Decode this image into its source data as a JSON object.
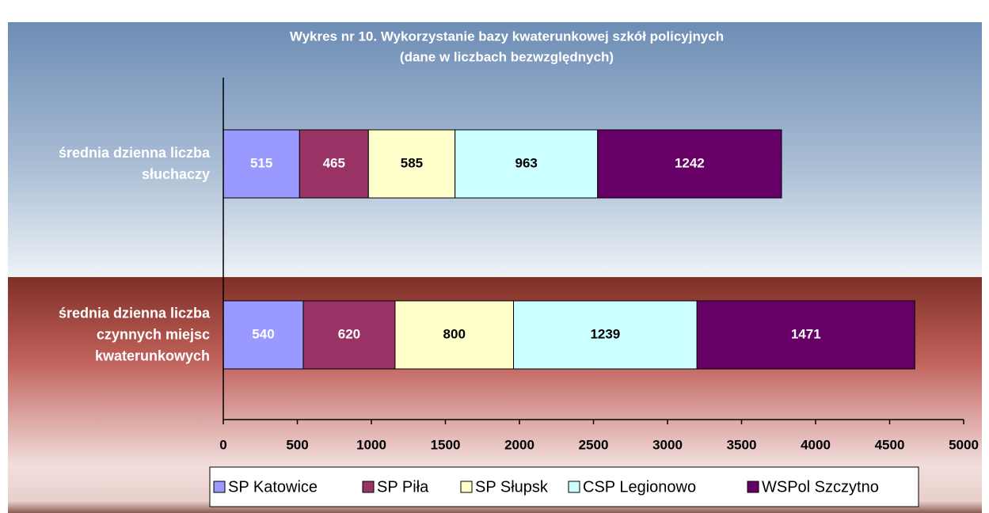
{
  "chart_data": {
    "type": "stacked_bar_horizontal",
    "title": "Wykres nr 10. Wykorzystanie bazy kwaterunkowej szkół policyjnych",
    "subtitle": "(dane w liczbach bezwzględnych)",
    "categories": [
      "średnia dzienna liczba\nsłuchaczy",
      "średnia dzienna liczba\nczynnych miejsc\nkwaterunkowych"
    ],
    "series": [
      {
        "name": "SP Katowice",
        "color": "#9999ff",
        "label_color": "#ffffff",
        "values": [
          515,
          540
        ]
      },
      {
        "name": "SP Piła",
        "color": "#993366",
        "label_color": "#ffffff",
        "values": [
          465,
          620
        ]
      },
      {
        "name": "SP Słupsk",
        "color": "#ffffcc",
        "label_color": "#000000",
        "values": [
          585,
          800
        ]
      },
      {
        "name": "CSP Legionowo",
        "color": "#ccffff",
        "label_color": "#000000",
        "values": [
          963,
          1239
        ]
      },
      {
        "name": "WSPol Szczytno",
        "color": "#660066",
        "label_color": "#ffffff",
        "values": [
          1242,
          1471
        ]
      }
    ],
    "xlim": [
      0,
      5000
    ],
    "xticks": [
      0,
      500,
      1000,
      1500,
      2000,
      2500,
      3000,
      3500,
      4000,
      4500,
      5000
    ],
    "legend": "bottom"
  }
}
